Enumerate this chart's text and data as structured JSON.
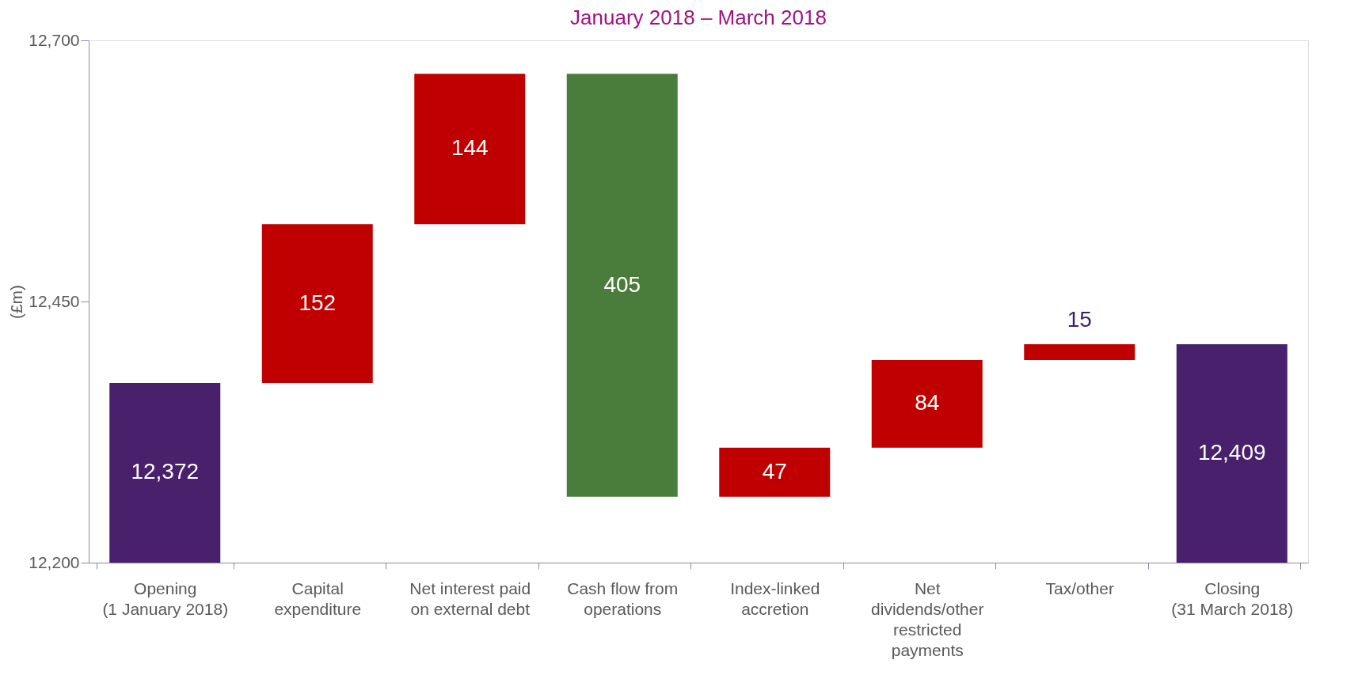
{
  "chart_data": {
    "type": "bar",
    "title": "January 2018 – March 2018",
    "ylabel": "(£m)",
    "categories": [
      "Opening\n(1 January 2018)",
      "Capital\nexpenditure",
      "Net interest paid\non external debt",
      "Cash flow from\noperations",
      "Index-linked\naccretion",
      "Net\ndividends/other\nrestricted\npayments",
      "Tax/other",
      "Closing\n(31 March 2018)"
    ],
    "base": [
      12200,
      12372,
      12524,
      12263,
      12263,
      12310,
      12394,
      12200
    ],
    "values": [
      172,
      152,
      144,
      405,
      47,
      84,
      15,
      209
    ],
    "value_labels": [
      "12,372",
      "152",
      "144",
      "405",
      "47",
      "84",
      "15",
      "12,409"
    ],
    "colors": [
      "#48206c",
      "#c00000",
      "#c00000",
      "#4a7d3b",
      "#c00000",
      "#c00000",
      "#c00000",
      "#48206c"
    ],
    "ylim": [
      12200,
      12700
    ],
    "yticks": [
      {
        "value": 12200,
        "label": "12,200"
      },
      {
        "value": 12450,
        "label": "12,450"
      },
      {
        "value": 12700,
        "label": "12,700"
      }
    ],
    "grid": false
  }
}
